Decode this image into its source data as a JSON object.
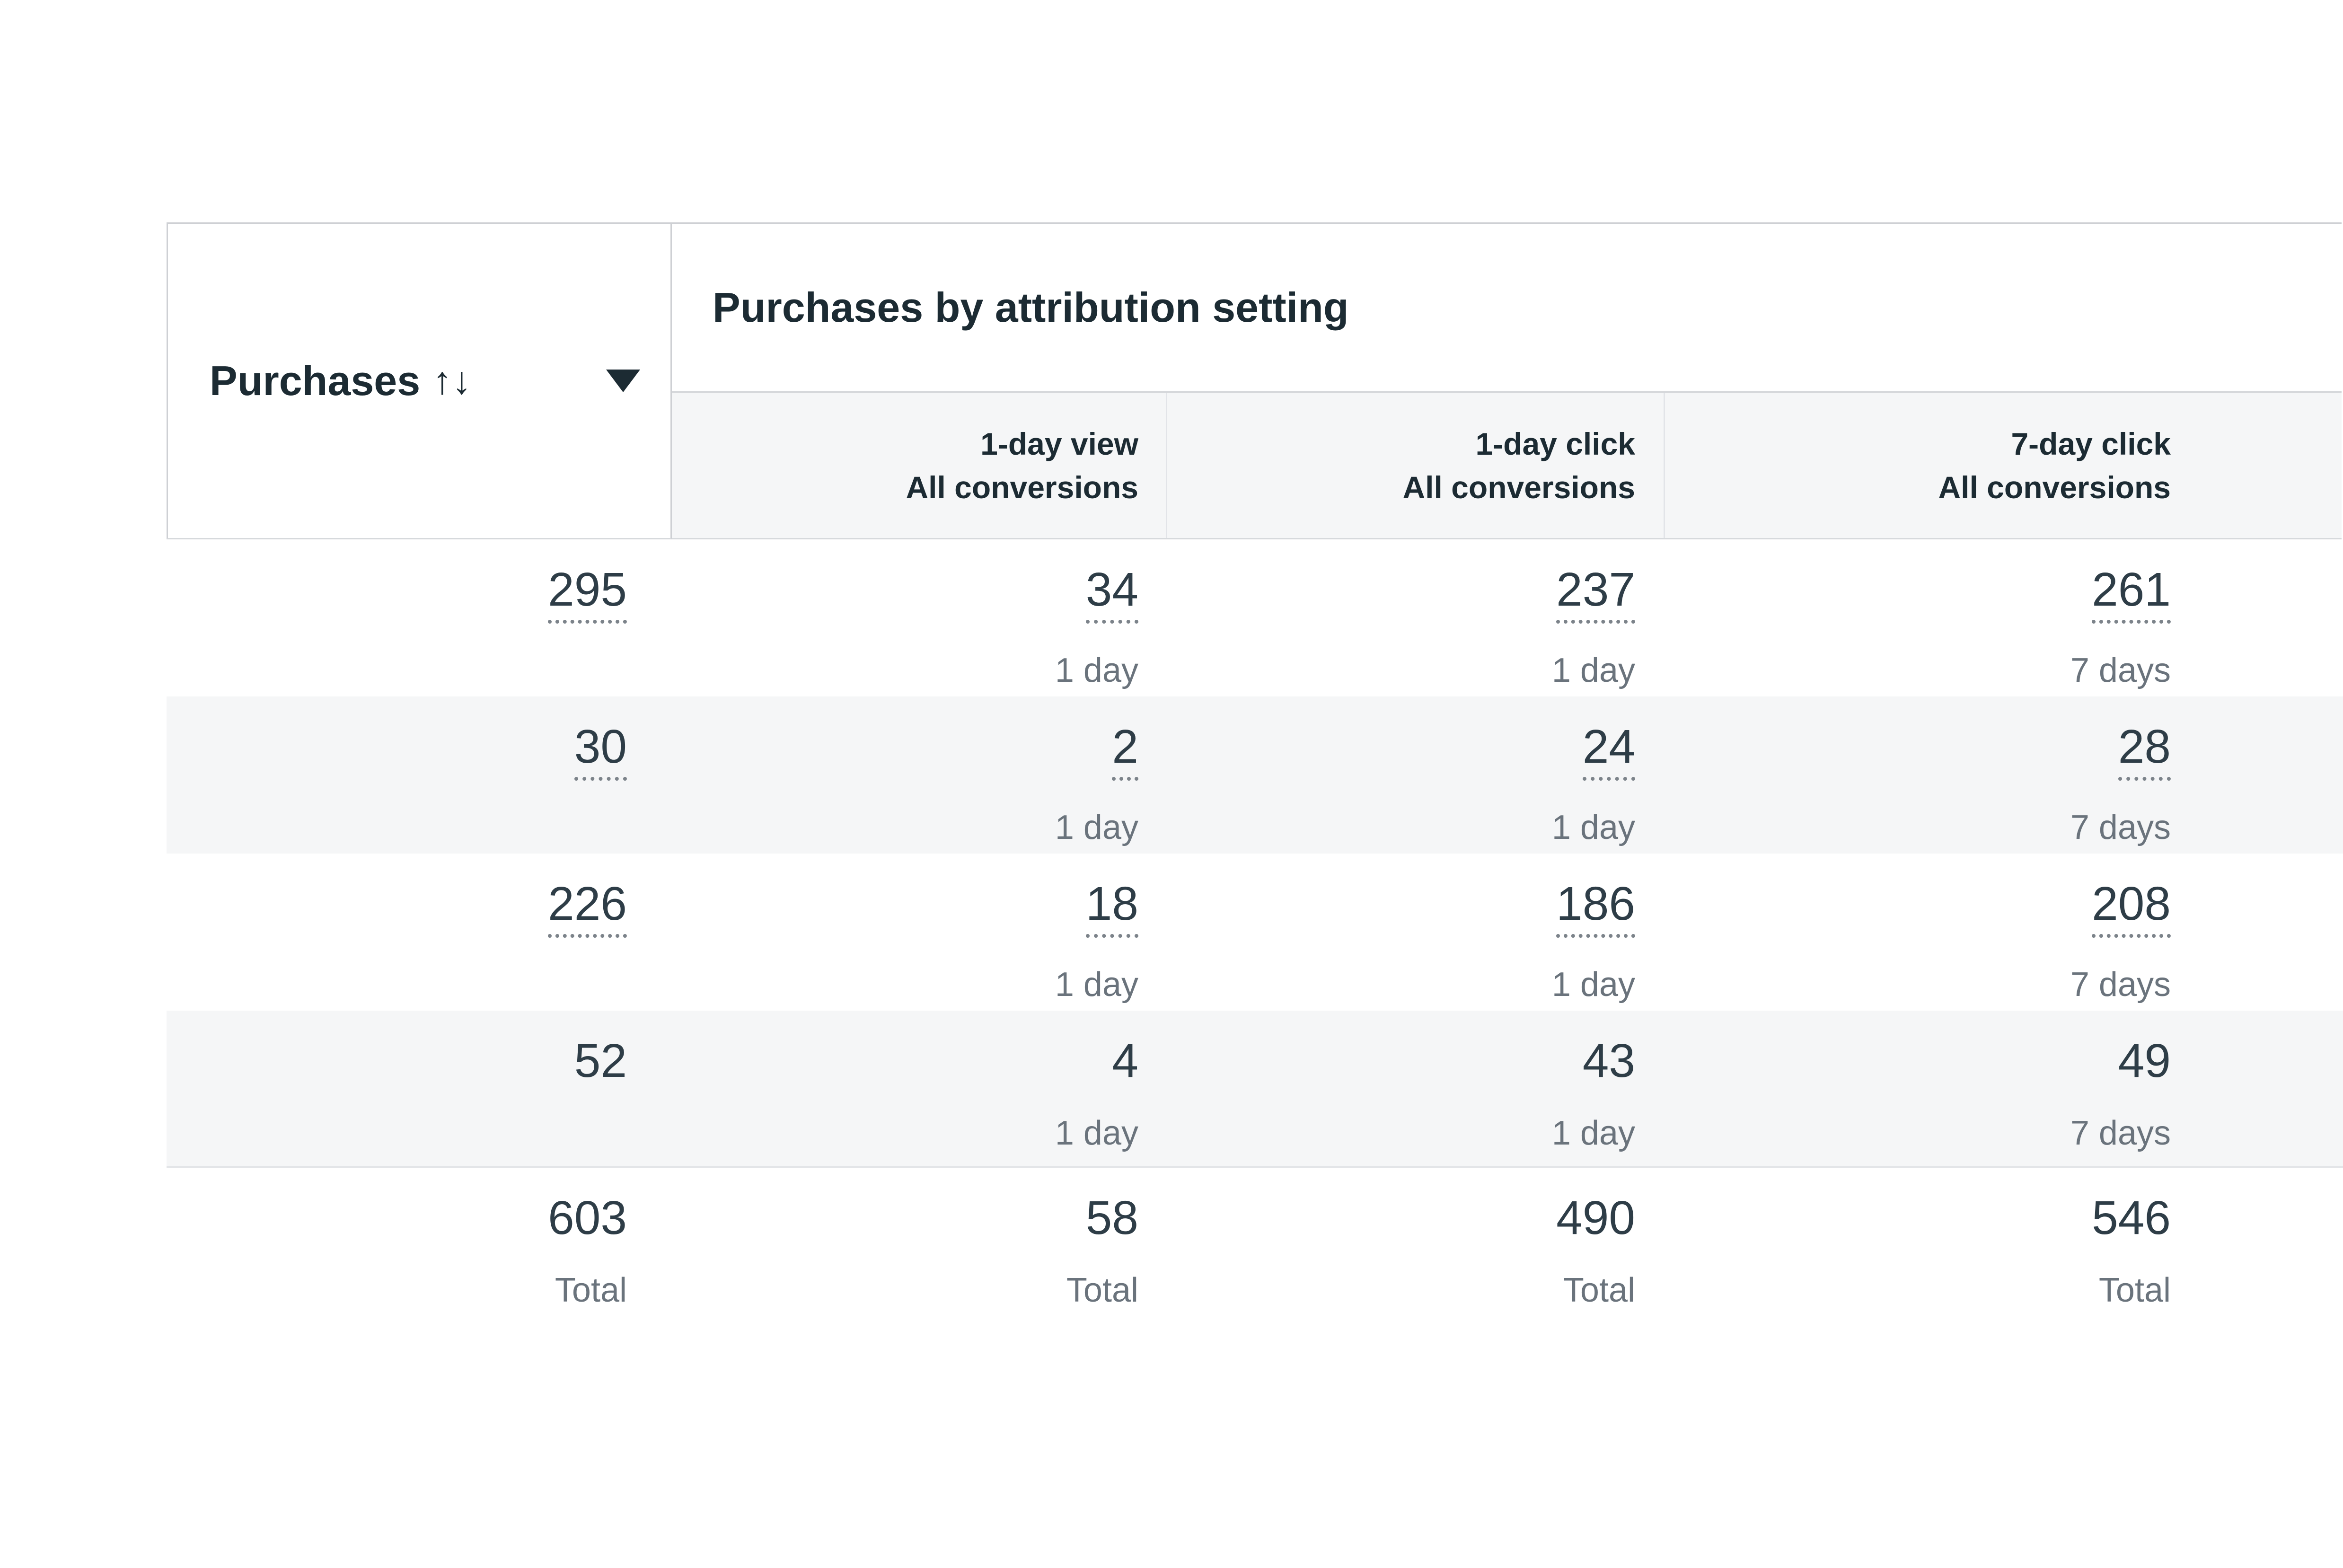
{
  "table": {
    "metric_column": {
      "label": "Purchases",
      "sort_icon_glyph": "↑↓",
      "dropdown_icon": "caret-down"
    },
    "group_header": "Purchases by attribution setting",
    "columns": [
      {
        "line1": "1-day view",
        "line2": "All conversions"
      },
      {
        "line1": "1-day click",
        "line2": "All conversions"
      },
      {
        "line1": "7-day click",
        "line2": "All conversions"
      }
    ],
    "rows": [
      {
        "purchases": "295",
        "cells": [
          {
            "value": "34",
            "window": "1 day"
          },
          {
            "value": "237",
            "window": "1 day"
          },
          {
            "value": "261",
            "window": "7 days"
          }
        ]
      },
      {
        "purchases": "30",
        "cells": [
          {
            "value": "2",
            "window": "1 day"
          },
          {
            "value": "24",
            "window": "1 day"
          },
          {
            "value": "28",
            "window": "7 days"
          }
        ]
      },
      {
        "purchases": "226",
        "cells": [
          {
            "value": "18",
            "window": "1 day"
          },
          {
            "value": "186",
            "window": "1 day"
          },
          {
            "value": "208",
            "window": "7 days"
          }
        ]
      },
      {
        "purchases": "52",
        "cells": [
          {
            "value": "4",
            "window": "1 day"
          },
          {
            "value": "43",
            "window": "1 day"
          },
          {
            "value": "49",
            "window": "7 days"
          }
        ]
      }
    ],
    "totals": {
      "purchases": "603",
      "label": "Total",
      "cells": [
        {
          "value": "58"
        },
        {
          "value": "490"
        },
        {
          "value": "546"
        }
      ]
    }
  },
  "colors": {
    "background": "#ffffff",
    "header_text": "#1c2b33",
    "value_text": "#2e3d47",
    "muted_text": "#6a737c",
    "row_stripe": "#f5f6f7",
    "border_strong": "#ced0d4",
    "border_light": "#d6d9dc",
    "column_divider": "#e2e4e8",
    "value_underline": "#7c838a"
  }
}
